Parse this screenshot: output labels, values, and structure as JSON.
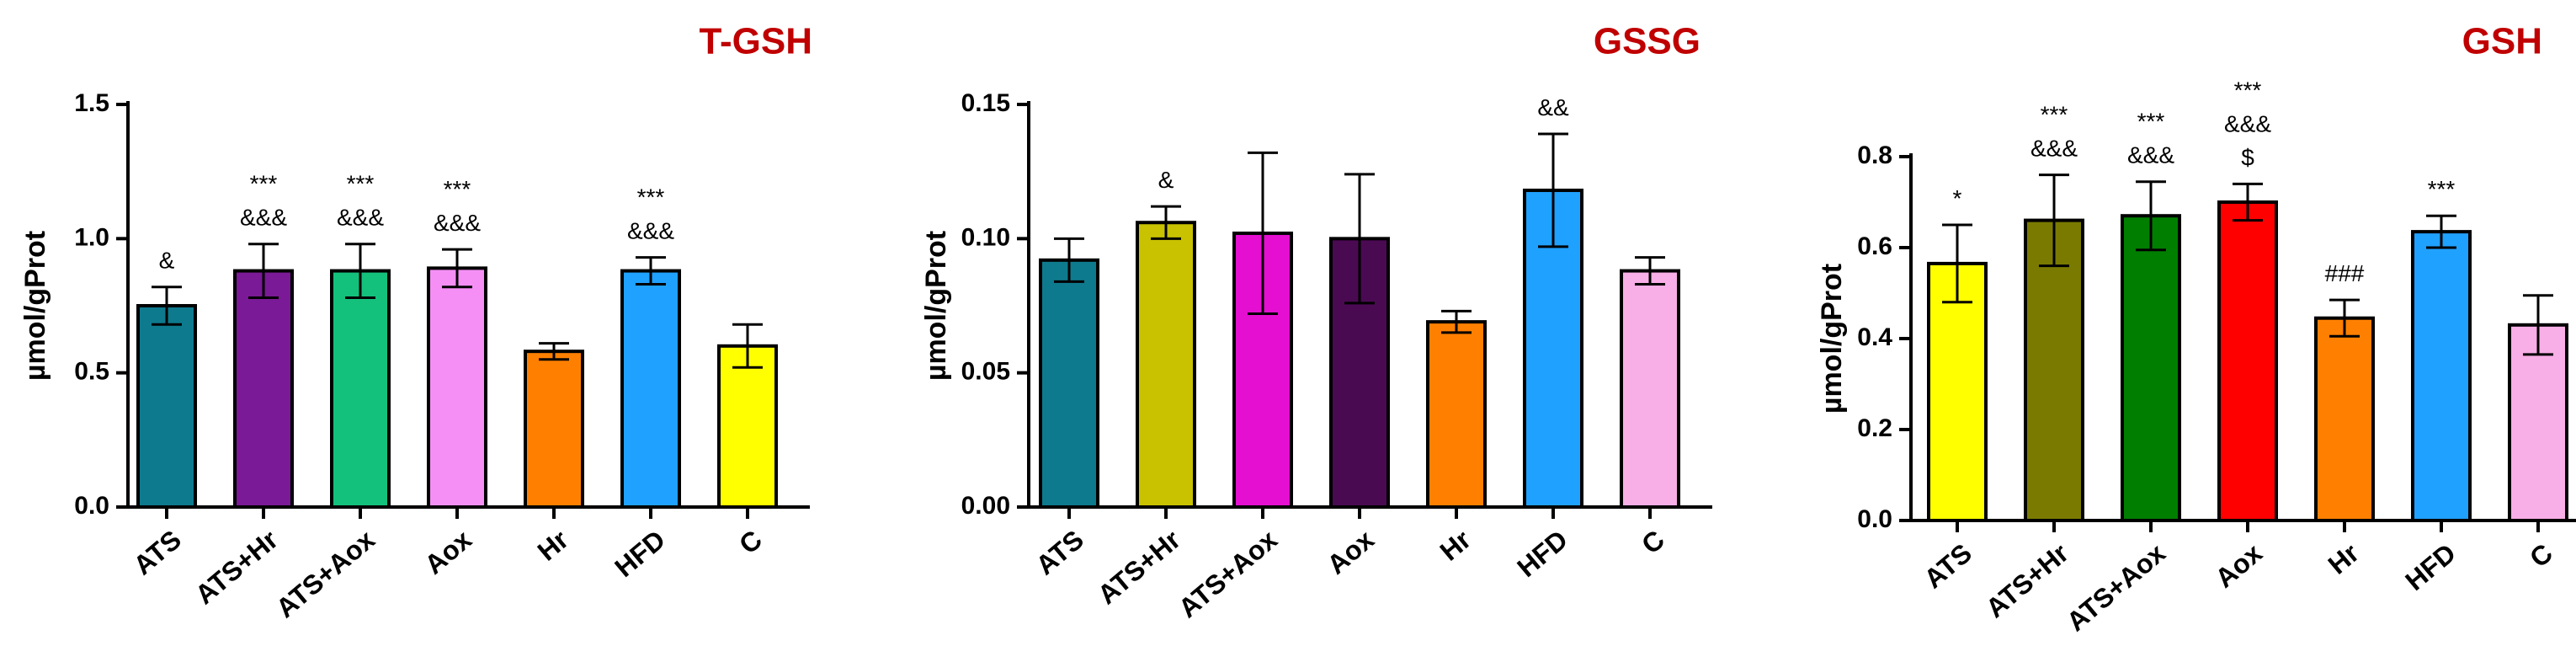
{
  "chart_data": [
    {
      "type": "bar",
      "title": "T-GSH",
      "ylabel": "µmol/gProt",
      "xlabel": "",
      "ylim": [
        0,
        1.5
      ],
      "yticks": [
        0.0,
        0.5,
        1.0,
        1.5
      ],
      "ytick_labels": [
        "0.0",
        "0.5",
        "1.0",
        "1.5"
      ],
      "categories": [
        "ATS",
        "ATS+Hr",
        "ATS+Aox",
        "Aox",
        "Hr",
        "HFD",
        "C"
      ],
      "values": [
        0.75,
        0.88,
        0.88,
        0.89,
        0.58,
        0.88,
        0.6
      ],
      "errors": [
        0.07,
        0.1,
        0.1,
        0.07,
        0.03,
        0.05,
        0.08
      ],
      "colors": [
        "#0e7a8e",
        "#7a1a96",
        "#13c07c",
        "#f58ff5",
        "#ff8000",
        "#1fa1ff",
        "#ffff00"
      ],
      "annotations": [
        [
          "&"
        ],
        [
          "***",
          "&&&"
        ],
        [
          "***",
          "&&&"
        ],
        [
          "***",
          "&&&"
        ],
        [],
        [
          "***",
          "&&&"
        ],
        []
      ]
    },
    {
      "type": "bar",
      "title": "GSSG",
      "ylabel": "µmol/gProt",
      "xlabel": "",
      "ylim": [
        0,
        0.15
      ],
      "yticks": [
        0.0,
        0.05,
        0.1,
        0.15
      ],
      "ytick_labels": [
        "0.00",
        "0.05",
        "0.10",
        "0.15"
      ],
      "categories": [
        "ATS",
        "ATS+Hr",
        "ATS+Aox",
        "Aox",
        "Hr",
        "HFD",
        "C"
      ],
      "values": [
        0.092,
        0.106,
        0.102,
        0.1,
        0.069,
        0.118,
        0.088
      ],
      "errors": [
        0.008,
        0.006,
        0.03,
        0.024,
        0.004,
        0.021,
        0.005
      ],
      "colors": [
        "#0e7a8e",
        "#c8c200",
        "#e40fd0",
        "#4a0a52",
        "#ff8000",
        "#1fa1ff",
        "#f8aee6"
      ],
      "annotations": [
        [],
        [
          "&"
        ],
        [],
        [],
        [],
        [
          "&&"
        ],
        []
      ]
    },
    {
      "type": "bar",
      "title": "GSH",
      "ylabel": "µmol/gProt",
      "xlabel": "",
      "ylim": [
        0,
        0.8
      ],
      "yticks": [
        0.0,
        0.2,
        0.4,
        0.6,
        0.8
      ],
      "ytick_labels": [
        "0.0",
        "0.2",
        "0.4",
        "0.6",
        "0.8"
      ],
      "categories": [
        "ATS",
        "ATS+Hr",
        "ATS+Aox",
        "Aox",
        "Hr",
        "HFD",
        "C"
      ],
      "values": [
        0.565,
        0.66,
        0.67,
        0.7,
        0.445,
        0.635,
        0.43
      ],
      "errors": [
        0.085,
        0.1,
        0.075,
        0.04,
        0.04,
        0.035,
        0.065
      ],
      "colors": [
        "#ffff00",
        "#7a7a00",
        "#007e00",
        "#ff0000",
        "#ff8000",
        "#1fa1ff",
        "#f8aee6"
      ],
      "annotations": [
        [
          "*"
        ],
        [
          "***",
          "&&&"
        ],
        [
          "***",
          "&&&"
        ],
        [
          "***",
          "&&&",
          "$"
        ],
        [
          "###"
        ],
        [
          "***"
        ],
        []
      ]
    }
  ]
}
